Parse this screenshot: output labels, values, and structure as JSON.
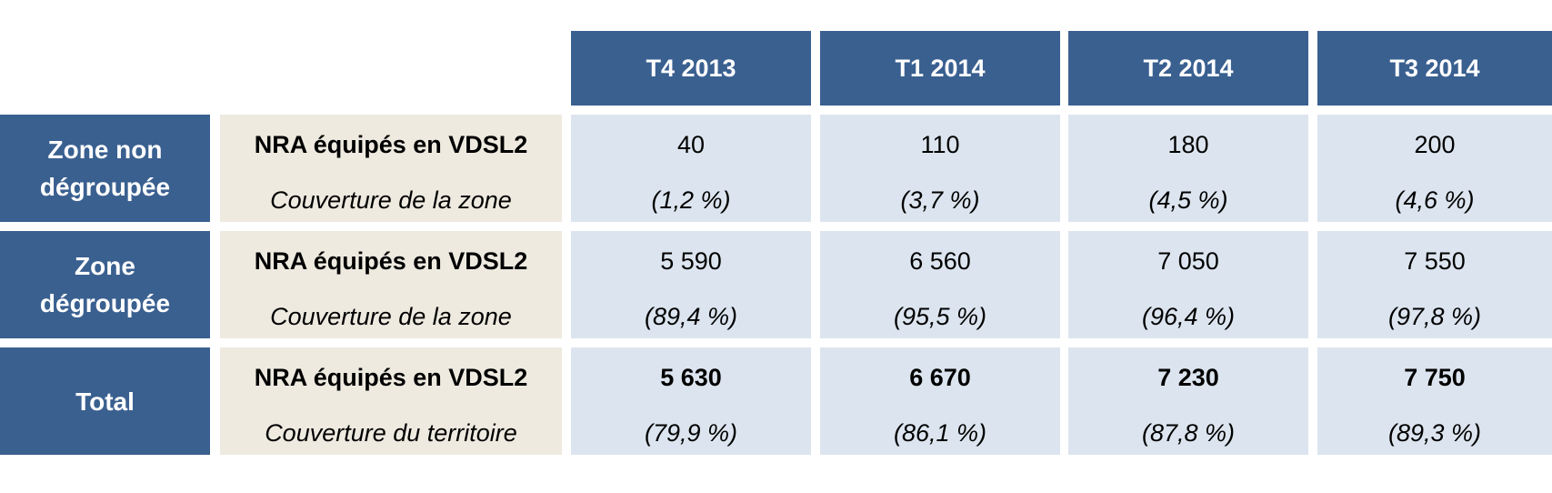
{
  "columns": [
    "T4 2013",
    "T1 2014",
    "T2 2014",
    "T3 2014"
  ],
  "rows": [
    {
      "header_line1": "Zone non",
      "header_line2": "dégroupée",
      "metric": "NRA équipés en VDSL2",
      "coverage_label": "Couverture de la zone",
      "values": [
        "40",
        "110",
        "180",
        "200"
      ],
      "coverage": [
        "(1,2 %)",
        "(3,7 %)",
        "(4,5 %)",
        "(4,6 %)"
      ]
    },
    {
      "header_line1": "Zone",
      "header_line2": "dégroupée",
      "metric": "NRA équipés en VDSL2",
      "coverage_label": "Couverture de la zone",
      "values": [
        "5 590",
        "6 560",
        "7 050",
        "7 550"
      ],
      "coverage": [
        "(89,4 %)",
        "(95,5 %)",
        "(96,4 %)",
        "(97,8 %)"
      ]
    },
    {
      "header_line1": "Total",
      "header_line2": "",
      "metric": "NRA équipés en VDSL2",
      "coverage_label": "Couverture du territoire",
      "values": [
        "5 630",
        "6 670",
        "7 230",
        "7 750"
      ],
      "coverage": [
        "(79,9 %)",
        "(86,1 %)",
        "(87,8 %)",
        "(89,3 %)"
      ]
    }
  ]
}
